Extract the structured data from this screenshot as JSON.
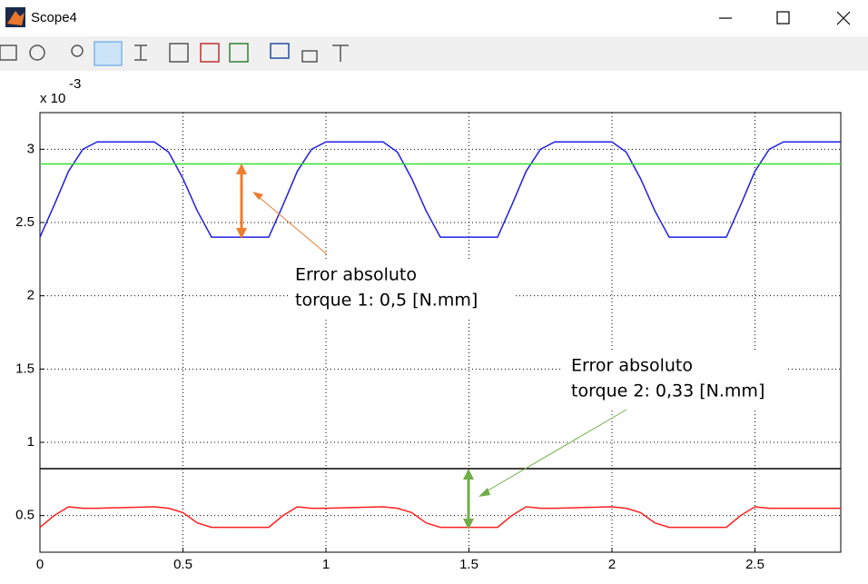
{
  "window": {
    "title": "Scope4"
  },
  "chart_data": {
    "type": "line",
    "y_multiplier": "x 10",
    "y_exponent": "-3",
    "xlim": [
      0,
      2.8
    ],
    "ylim": [
      0.25,
      3.25
    ],
    "xticks": [
      0,
      0.5,
      1,
      1.5,
      2,
      2.5
    ],
    "yticks": [
      0.5,
      1,
      1.5,
      2,
      2.5,
      3
    ],
    "grid": true,
    "series": [
      {
        "color": "#2020e0",
        "x": [
          0,
          0.05,
          0.1,
          0.15,
          0.2,
          0.4,
          0.45,
          0.5,
          0.55,
          0.6,
          0.8,
          0.85,
          0.9,
          0.95,
          1.0,
          1.2,
          1.25,
          1.3,
          1.35,
          1.4,
          1.6,
          1.65,
          1.7,
          1.75,
          1.8,
          2.0,
          2.05,
          2.1,
          2.15,
          2.2,
          2.4,
          2.45,
          2.5,
          2.55,
          2.6,
          2.8
        ],
        "values": [
          2.4,
          2.62,
          2.85,
          3.0,
          3.05,
          3.05,
          2.98,
          2.8,
          2.58,
          2.4,
          2.4,
          2.62,
          2.85,
          3.0,
          3.05,
          3.05,
          2.98,
          2.8,
          2.58,
          2.4,
          2.4,
          2.62,
          2.85,
          3.0,
          3.05,
          3.05,
          2.98,
          2.8,
          2.58,
          2.4,
          2.4,
          2.62,
          2.85,
          3.0,
          3.05,
          3.05
        ]
      },
      {
        "color": "#ff2020",
        "x": [
          0,
          0.05,
          0.1,
          0.15,
          0.2,
          0.4,
          0.45,
          0.5,
          0.55,
          0.6,
          0.8,
          0.85,
          0.9,
          0.95,
          1.0,
          1.2,
          1.25,
          1.3,
          1.35,
          1.4,
          1.6,
          1.65,
          1.7,
          1.75,
          1.8,
          2.0,
          2.05,
          2.1,
          2.15,
          2.2,
          2.4,
          2.45,
          2.5,
          2.55,
          2.6,
          2.8
        ],
        "values": [
          0.42,
          0.5,
          0.56,
          0.55,
          0.55,
          0.56,
          0.55,
          0.52,
          0.45,
          0.42,
          0.42,
          0.5,
          0.56,
          0.55,
          0.55,
          0.56,
          0.55,
          0.52,
          0.45,
          0.42,
          0.42,
          0.5,
          0.56,
          0.55,
          0.55,
          0.56,
          0.55,
          0.52,
          0.45,
          0.42,
          0.42,
          0.5,
          0.56,
          0.55,
          0.55,
          0.55
        ]
      },
      {
        "color": "#30e030",
        "x": [
          0,
          2.8
        ],
        "values": [
          2.9,
          2.9
        ]
      },
      {
        "color": "#000000",
        "x": [
          0,
          2.8
        ],
        "values": [
          0.82,
          0.82
        ]
      }
    ],
    "annotations": [
      {
        "text": [
          "Error absoluto",
          "torque 1: 0,5 [N.mm]"
        ]
      },
      {
        "text": [
          "Error absoluto",
          "torque 2: 0,33 [N.mm]"
        ]
      }
    ]
  }
}
